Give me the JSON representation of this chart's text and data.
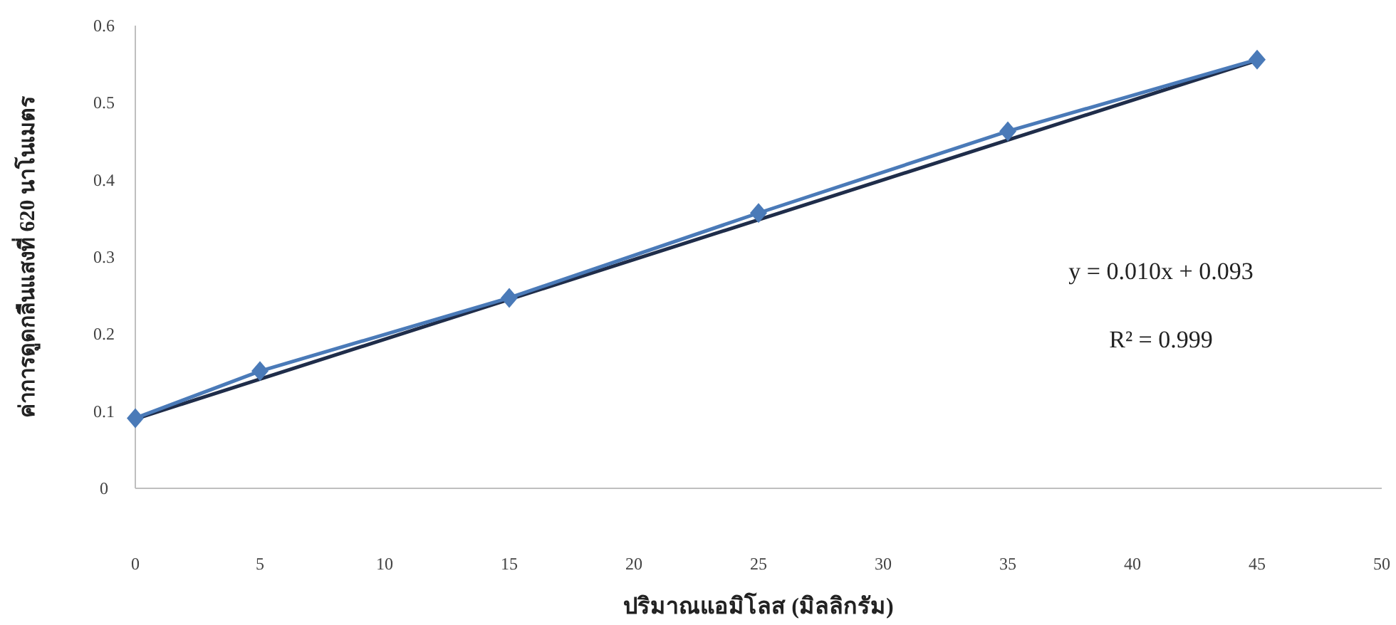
{
  "chart_data": {
    "type": "line",
    "xlabel": "ปริมาณแอมิโลส (มิลลิกรัม)",
    "ylabel": "ค่าการดูดกลืนแสงที่ 620 นาโนเมตร",
    "xlim": [
      0,
      50
    ],
    "xticks": [
      0,
      5,
      10,
      15,
      20,
      25,
      30,
      35,
      40,
      45,
      50
    ],
    "ylim": [
      0,
      0.6
    ],
    "yticks": [
      0,
      0.1,
      0.2,
      0.3,
      0.4,
      0.5,
      0.6
    ],
    "series": [
      {
        "color": "#1f2d4a",
        "marker": "none",
        "x": [
          0,
          45
        ],
        "values": [
          0.09,
          0.555
        ]
      },
      {
        "color": "#4a7ab8",
        "marker": "diamond",
        "x": [
          0,
          5,
          15,
          25,
          35,
          45
        ],
        "values": [
          0.091,
          0.152,
          0.247,
          0.357,
          0.463,
          0.556
        ]
      }
    ],
    "annotations": [
      "y = 0.010x + 0.093",
      "R² = 0.999"
    ]
  }
}
